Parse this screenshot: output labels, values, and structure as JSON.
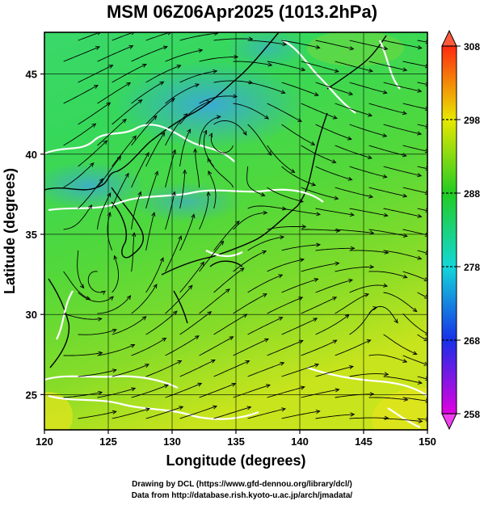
{
  "title": "MSM 06Z06Apr2025 (1013.2hPa)",
  "x_axis": {
    "label": "Longitude (degrees)",
    "ticks": [
      120,
      125,
      130,
      135,
      140,
      145,
      150
    ]
  },
  "y_axis": {
    "label": "Latitude  (degrees)",
    "ticks": [
      25,
      30,
      35,
      40,
      45
    ]
  },
  "colorbar": {
    "ticks": [
      258,
      268,
      278,
      288,
      298,
      308
    ],
    "colors": [
      "#d400d4",
      "#1a2fe0",
      "#14d8d0",
      "#26d026",
      "#e6e600",
      "#ff3a1a"
    ]
  },
  "credits": {
    "line1": "Drawing by DCL (https://www.gfd-dennou.org/library/dcl/)",
    "line2": "Data from http://database.rish.kyoto-u.ac.jp/arch/jmadata/"
  }
}
